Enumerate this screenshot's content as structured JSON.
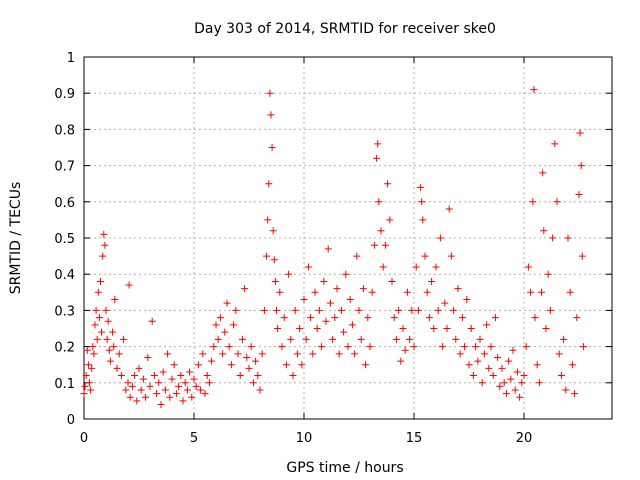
{
  "chart_data": {
    "type": "scatter",
    "title": "Day 303 of 2014, SRMTID for receiver ske0",
    "xlabel": "GPS time / hours",
    "ylabel": "SRMTID / TECUs",
    "xlim": [
      0,
      24
    ],
    "ylim": [
      0,
      1
    ],
    "xticks": [
      0,
      5,
      10,
      15,
      20
    ],
    "yticks": [
      0,
      0.1,
      0.2,
      0.3,
      0.4,
      0.5,
      0.6,
      0.7,
      0.8,
      0.9,
      1
    ],
    "ytick_labels": [
      "0",
      "0.1",
      "0.2",
      "0.3",
      "0.4",
      "0.5",
      "0.6",
      "0.7",
      "0.8",
      "0.9",
      "1"
    ],
    "grid": true,
    "marker": "+",
    "color": "#ff0000",
    "series": [
      {
        "name": "ske0",
        "points": [
          [
            0.0,
            0.07
          ],
          [
            0.05,
            0.09
          ],
          [
            0.1,
            0.12
          ],
          [
            0.15,
            0.19
          ],
          [
            0.2,
            0.15
          ],
          [
            0.25,
            0.1
          ],
          [
            0.3,
            0.08
          ],
          [
            0.35,
            0.14
          ],
          [
            0.4,
            0.2
          ],
          [
            0.45,
            0.18
          ],
          [
            0.5,
            0.26
          ],
          [
            0.55,
            0.3
          ],
          [
            0.6,
            0.22
          ],
          [
            0.65,
            0.35
          ],
          [
            0.7,
            0.28
          ],
          [
            0.75,
            0.38
          ],
          [
            0.8,
            0.24
          ],
          [
            0.85,
            0.45
          ],
          [
            0.9,
            0.51
          ],
          [
            0.95,
            0.48
          ],
          [
            1.0,
            0.3
          ],
          [
            1.05,
            0.22
          ],
          [
            1.1,
            0.27
          ],
          [
            1.15,
            0.19
          ],
          [
            1.2,
            0.16
          ],
          [
            1.3,
            0.24
          ],
          [
            1.35,
            0.2
          ],
          [
            1.4,
            0.33
          ],
          [
            1.5,
            0.14
          ],
          [
            1.6,
            0.18
          ],
          [
            1.7,
            0.12
          ],
          [
            1.8,
            0.22
          ],
          [
            1.9,
            0.08
          ],
          [
            2.0,
            0.1
          ],
          [
            2.05,
            0.37
          ],
          [
            2.1,
            0.06
          ],
          [
            2.2,
            0.09
          ],
          [
            2.3,
            0.12
          ],
          [
            2.4,
            0.05
          ],
          [
            2.5,
            0.14
          ],
          [
            2.6,
            0.08
          ],
          [
            2.7,
            0.11
          ],
          [
            2.8,
            0.06
          ],
          [
            2.9,
            0.17
          ],
          [
            3.0,
            0.09
          ],
          [
            3.1,
            0.27
          ],
          [
            3.2,
            0.12
          ],
          [
            3.3,
            0.07
          ],
          [
            3.4,
            0.1
          ],
          [
            3.5,
            0.04
          ],
          [
            3.6,
            0.13
          ],
          [
            3.7,
            0.08
          ],
          [
            3.8,
            0.18
          ],
          [
            3.9,
            0.06
          ],
          [
            4.0,
            0.11
          ],
          [
            4.1,
            0.15
          ],
          [
            4.2,
            0.07
          ],
          [
            4.3,
            0.09
          ],
          [
            4.4,
            0.12
          ],
          [
            4.5,
            0.05
          ],
          [
            4.6,
            0.1
          ],
          [
            4.7,
            0.08
          ],
          [
            4.8,
            0.13
          ],
          [
            4.9,
            0.06
          ],
          [
            5.0,
            0.11
          ],
          [
            5.1,
            0.09
          ],
          [
            5.2,
            0.15
          ],
          [
            5.3,
            0.08
          ],
          [
            5.4,
            0.18
          ],
          [
            5.5,
            0.07
          ],
          [
            5.6,
            0.12
          ],
          [
            5.7,
            0.1
          ],
          [
            5.8,
            0.16
          ],
          [
            5.9,
            0.2
          ],
          [
            6.0,
            0.26
          ],
          [
            6.1,
            0.22
          ],
          [
            6.2,
            0.28
          ],
          [
            6.3,
            0.18
          ],
          [
            6.4,
            0.24
          ],
          [
            6.5,
            0.32
          ],
          [
            6.6,
            0.2
          ],
          [
            6.7,
            0.15
          ],
          [
            6.8,
            0.26
          ],
          [
            6.9,
            0.3
          ],
          [
            7.0,
            0.18
          ],
          [
            7.1,
            0.12
          ],
          [
            7.2,
            0.22
          ],
          [
            7.3,
            0.36
          ],
          [
            7.4,
            0.17
          ],
          [
            7.5,
            0.14
          ],
          [
            7.6,
            0.2
          ],
          [
            7.7,
            0.1
          ],
          [
            7.8,
            0.16
          ],
          [
            7.9,
            0.12
          ],
          [
            8.0,
            0.08
          ],
          [
            8.1,
            0.18
          ],
          [
            8.2,
            0.3
          ],
          [
            8.3,
            0.45
          ],
          [
            8.35,
            0.55
          ],
          [
            8.4,
            0.65
          ],
          [
            8.45,
            0.9
          ],
          [
            8.5,
            0.84
          ],
          [
            8.55,
            0.75
          ],
          [
            8.6,
            0.52
          ],
          [
            8.65,
            0.44
          ],
          [
            8.7,
            0.38
          ],
          [
            8.75,
            0.3
          ],
          [
            8.8,
            0.25
          ],
          [
            8.9,
            0.35
          ],
          [
            9.0,
            0.2
          ],
          [
            9.1,
            0.28
          ],
          [
            9.2,
            0.15
          ],
          [
            9.3,
            0.4
          ],
          [
            9.4,
            0.22
          ],
          [
            9.5,
            0.12
          ],
          [
            9.6,
            0.3
          ],
          [
            9.7,
            0.18
          ],
          [
            9.8,
            0.25
          ],
          [
            9.9,
            0.15
          ],
          [
            10.0,
            0.33
          ],
          [
            10.1,
            0.22
          ],
          [
            10.2,
            0.42
          ],
          [
            10.3,
            0.28
          ],
          [
            10.4,
            0.18
          ],
          [
            10.5,
            0.35
          ],
          [
            10.6,
            0.25
          ],
          [
            10.7,
            0.3
          ],
          [
            10.8,
            0.2
          ],
          [
            10.9,
            0.38
          ],
          [
            11.0,
            0.27
          ],
          [
            11.1,
            0.47
          ],
          [
            11.2,
            0.32
          ],
          [
            11.3,
            0.22
          ],
          [
            11.4,
            0.28
          ],
          [
            11.5,
            0.36
          ],
          [
            11.6,
            0.18
          ],
          [
            11.7,
            0.3
          ],
          [
            11.8,
            0.24
          ],
          [
            11.9,
            0.4
          ],
          [
            12.0,
            0.2
          ],
          [
            12.1,
            0.33
          ],
          [
            12.2,
            0.26
          ],
          [
            12.3,
            0.18
          ],
          [
            12.4,
            0.45
          ],
          [
            12.5,
            0.3
          ],
          [
            12.6,
            0.22
          ],
          [
            12.7,
            0.36
          ],
          [
            12.8,
            0.15
          ],
          [
            12.9,
            0.28
          ],
          [
            13.0,
            0.2
          ],
          [
            13.1,
            0.35
          ],
          [
            13.2,
            0.48
          ],
          [
            13.3,
            0.72
          ],
          [
            13.35,
            0.76
          ],
          [
            13.4,
            0.6
          ],
          [
            13.5,
            0.52
          ],
          [
            13.6,
            0.42
          ],
          [
            13.7,
            0.48
          ],
          [
            13.8,
            0.65
          ],
          [
            13.9,
            0.55
          ],
          [
            14.0,
            0.38
          ],
          [
            14.1,
            0.28
          ],
          [
            14.2,
            0.22
          ],
          [
            14.3,
            0.3
          ],
          [
            14.4,
            0.16
          ],
          [
            14.5,
            0.25
          ],
          [
            14.6,
            0.19
          ],
          [
            14.7,
            0.35
          ],
          [
            14.8,
            0.22
          ],
          [
            14.9,
            0.3
          ],
          [
            15.0,
            0.2
          ],
          [
            15.1,
            0.42
          ],
          [
            15.2,
            0.3
          ],
          [
            15.3,
            0.64
          ],
          [
            15.35,
            0.6
          ],
          [
            15.4,
            0.55
          ],
          [
            15.5,
            0.45
          ],
          [
            15.6,
            0.35
          ],
          [
            15.7,
            0.28
          ],
          [
            15.8,
            0.38
          ],
          [
            15.9,
            0.25
          ],
          [
            16.0,
            0.42
          ],
          [
            16.1,
            0.3
          ],
          [
            16.2,
            0.5
          ],
          [
            16.3,
            0.2
          ],
          [
            16.4,
            0.32
          ],
          [
            16.5,
            0.25
          ],
          [
            16.6,
            0.58
          ],
          [
            16.7,
            0.45
          ],
          [
            16.8,
            0.3
          ],
          [
            16.9,
            0.22
          ],
          [
            17.0,
            0.36
          ],
          [
            17.1,
            0.18
          ],
          [
            17.2,
            0.28
          ],
          [
            17.3,
            0.2
          ],
          [
            17.4,
            0.33
          ],
          [
            17.5,
            0.15
          ],
          [
            17.6,
            0.25
          ],
          [
            17.7,
            0.12
          ],
          [
            17.8,
            0.2
          ],
          [
            17.9,
            0.16
          ],
          [
            18.0,
            0.22
          ],
          [
            18.1,
            0.1
          ],
          [
            18.2,
            0.18
          ],
          [
            18.3,
            0.26
          ],
          [
            18.4,
            0.14
          ],
          [
            18.5,
            0.2
          ],
          [
            18.6,
            0.12
          ],
          [
            18.7,
            0.28
          ],
          [
            18.8,
            0.17
          ],
          [
            18.9,
            0.09
          ],
          [
            19.0,
            0.14
          ],
          [
            19.1,
            0.1
          ],
          [
            19.2,
            0.07
          ],
          [
            19.3,
            0.16
          ],
          [
            19.4,
            0.11
          ],
          [
            19.5,
            0.19
          ],
          [
            19.6,
            0.08
          ],
          [
            19.7,
            0.13
          ],
          [
            19.8,
            0.06
          ],
          [
            19.9,
            0.1
          ],
          [
            20.0,
            0.12
          ],
          [
            20.1,
            0.2
          ],
          [
            20.2,
            0.42
          ],
          [
            20.3,
            0.35
          ],
          [
            20.4,
            0.6
          ],
          [
            20.45,
            0.91
          ],
          [
            20.5,
            0.28
          ],
          [
            20.6,
            0.15
          ],
          [
            20.7,
            0.1
          ],
          [
            20.8,
            0.35
          ],
          [
            20.85,
            0.68
          ],
          [
            20.9,
            0.52
          ],
          [
            21.0,
            0.25
          ],
          [
            21.1,
            0.4
          ],
          [
            21.2,
            0.3
          ],
          [
            21.3,
            0.5
          ],
          [
            21.4,
            0.76
          ],
          [
            21.5,
            0.6
          ],
          [
            21.6,
            0.18
          ],
          [
            21.7,
            0.12
          ],
          [
            21.8,
            0.22
          ],
          [
            21.9,
            0.08
          ],
          [
            22.0,
            0.5
          ],
          [
            22.1,
            0.35
          ],
          [
            22.2,
            0.15
          ],
          [
            22.3,
            0.07
          ],
          [
            22.4,
            0.28
          ],
          [
            22.5,
            0.62
          ],
          [
            22.55,
            0.79
          ],
          [
            22.6,
            0.7
          ],
          [
            22.65,
            0.45
          ],
          [
            22.7,
            0.2
          ]
        ]
      }
    ]
  }
}
